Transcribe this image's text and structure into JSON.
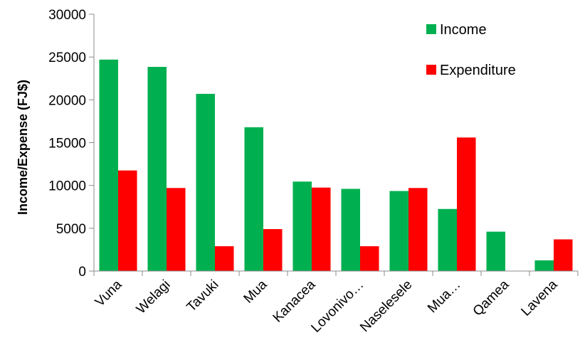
{
  "chart_data": {
    "type": "bar",
    "title": "",
    "xlabel": "",
    "ylabel": "Income/Expense (FJ$)",
    "ylim": [
      0,
      30000
    ],
    "yticks": [
      0,
      5000,
      10000,
      15000,
      20000,
      25000,
      30000
    ],
    "grid": false,
    "legend_position": "top-right",
    "categories": [
      "Vuna",
      "Welagi",
      "Tavuki",
      "Mua",
      "Kanacea",
      "Lovonivo…",
      "Naselesele",
      "Mua…",
      "Qamea",
      "Lavena"
    ],
    "series": [
      {
        "name": "Income",
        "color": "#00B050",
        "values": [
          24700,
          23850,
          20700,
          16800,
          10450,
          9600,
          9350,
          7250,
          4600,
          1250
        ]
      },
      {
        "name": "Expenditure",
        "color": "#FF0000",
        "values": [
          11750,
          9700,
          2900,
          4900,
          9750,
          2900,
          9700,
          15600,
          0,
          3700
        ]
      }
    ]
  }
}
